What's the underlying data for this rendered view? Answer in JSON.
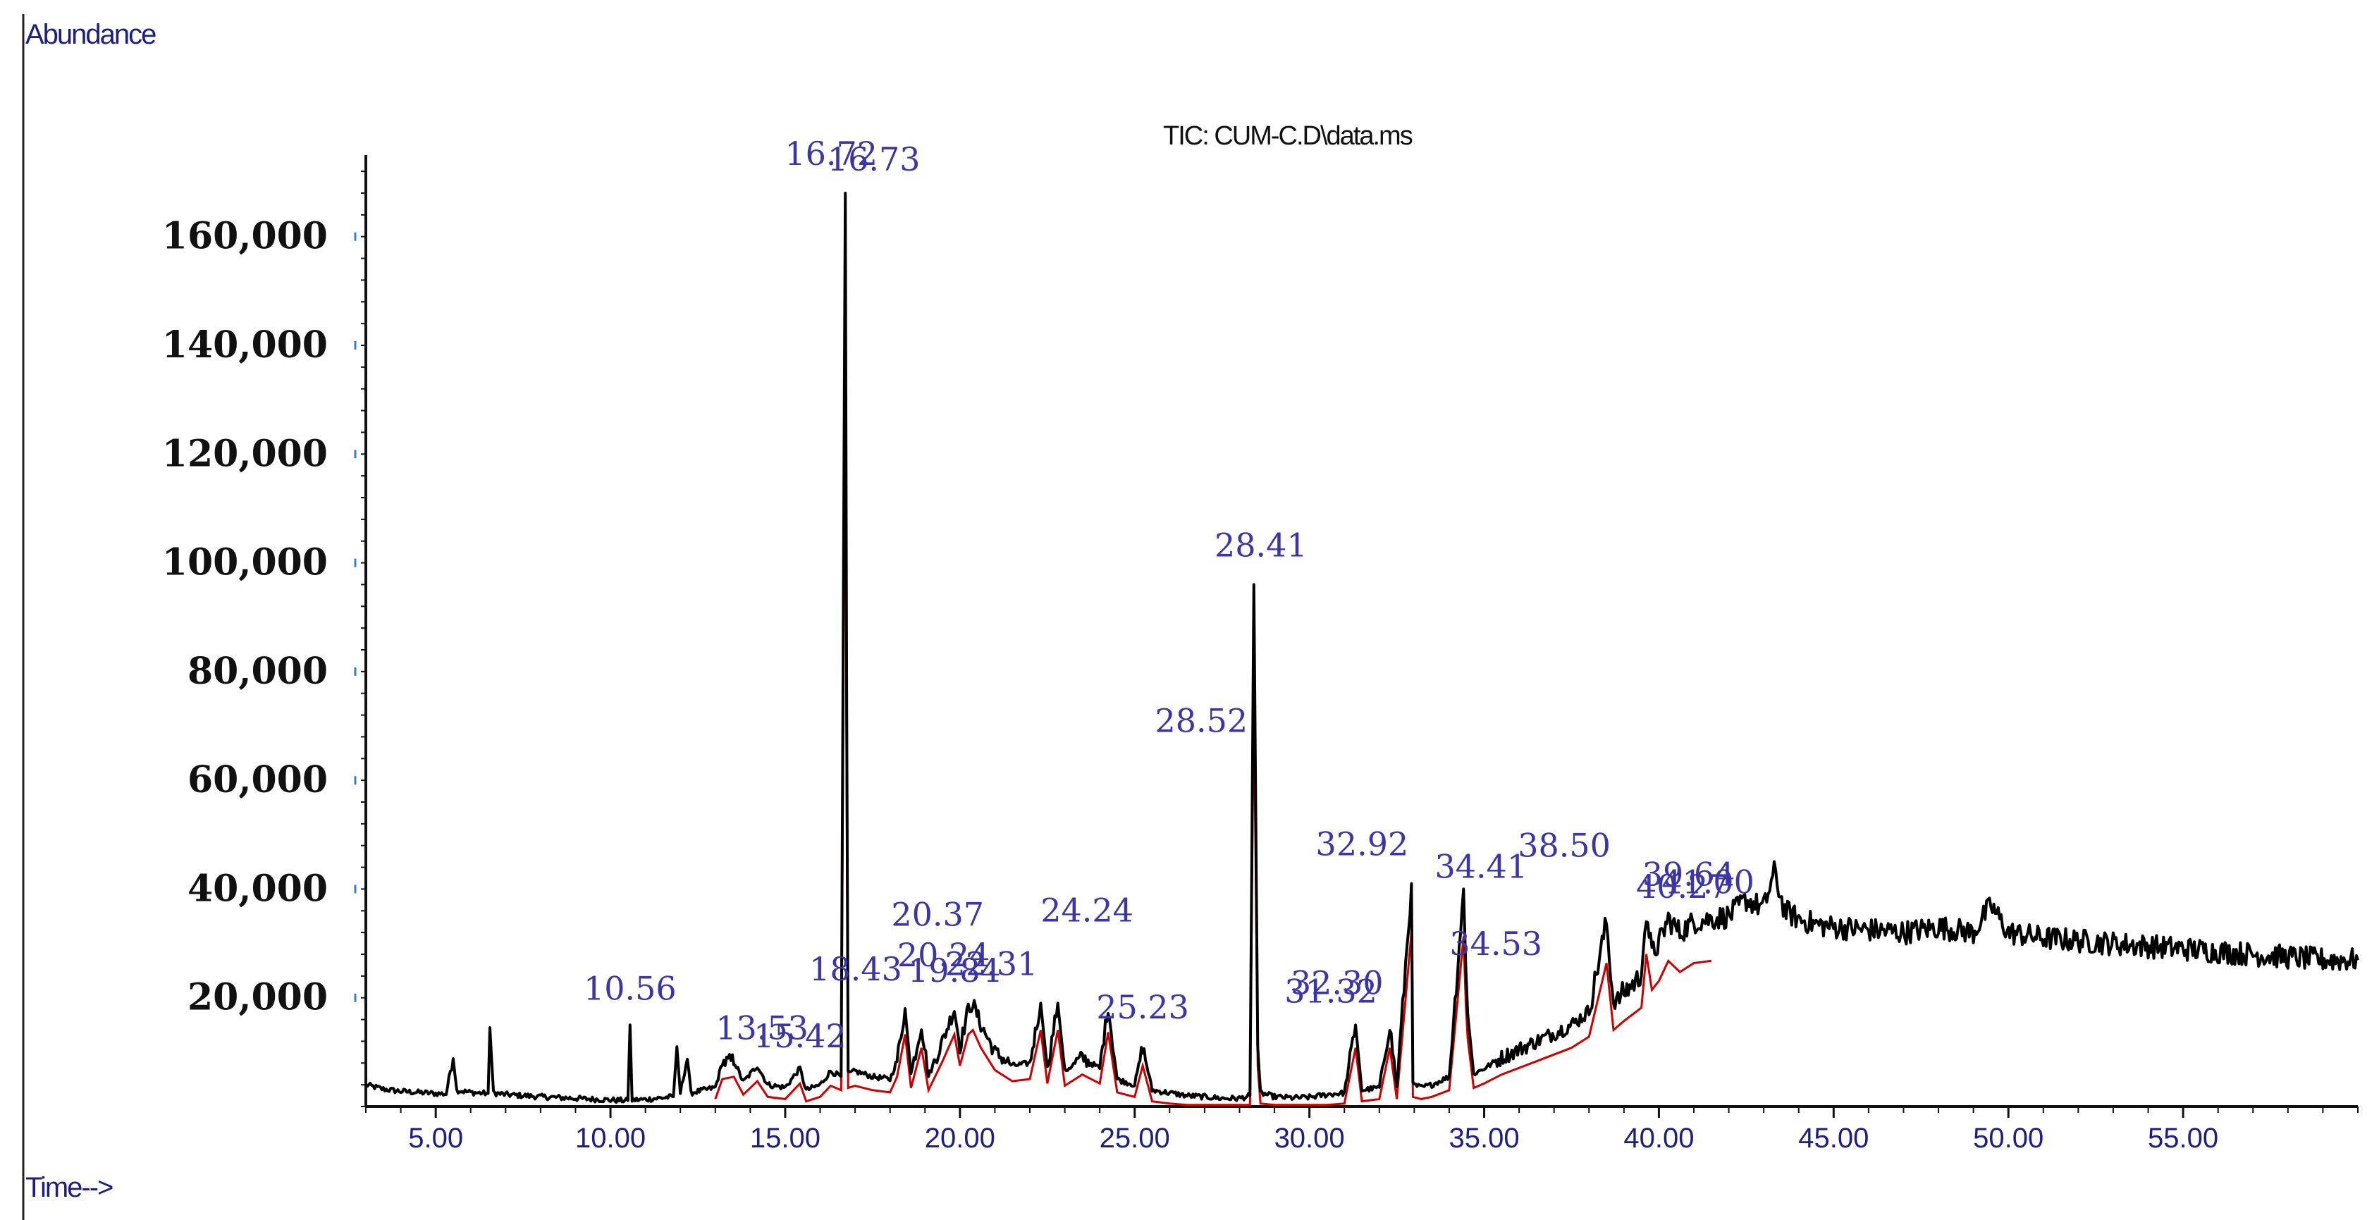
{
  "chart_data": {
    "type": "line",
    "title": "TIC: CUM-C.D\\data.ms",
    "ylabel": "Abundance",
    "xlabel": "Time-->",
    "xlim": [
      3.0,
      60.0
    ],
    "ylim": [
      0,
      175000
    ],
    "x_ticks": [
      "5.00",
      "10.00",
      "15.00",
      "20.00",
      "25.00",
      "30.00",
      "35.00",
      "40.00",
      "45.00",
      "50.00",
      "55.00"
    ],
    "y_ticks": [
      "20,000",
      "40,000",
      "60,000",
      "80,000",
      "100,000",
      "120,000",
      "140,000",
      "160,000"
    ],
    "grid": false,
    "colors": {
      "trace": "#000000",
      "baseline": "#cc0000",
      "labels": "#3b35a6",
      "axes": "#111111"
    },
    "peak_labels": [
      "10.56",
      "13.53",
      "15.42",
      "16.72",
      "16.73",
      "18.43",
      "19.84",
      "20.24",
      "20.37",
      "22.31",
      "24.24",
      "25.23",
      "28.41",
      "28.52",
      "31.32",
      "32.30",
      "32.92",
      "34.41",
      "34.53",
      "38.50",
      "39.64",
      "40.27",
      "41.00"
    ],
    "series": [
      {
        "points": [
          [
            3.0,
            4000
          ],
          [
            3.5,
            3200
          ],
          [
            4.0,
            2800
          ],
          [
            4.5,
            2600
          ],
          [
            5.0,
            2400
          ],
          [
            5.3,
            2300
          ],
          [
            5.5,
            9500
          ],
          [
            5.6,
            3000
          ],
          [
            6.0,
            2600
          ],
          [
            6.5,
            2400
          ],
          [
            6.55,
            14500
          ],
          [
            6.65,
            2500
          ],
          [
            7.0,
            2200
          ],
          [
            8.0,
            1800
          ],
          [
            9.0,
            1500
          ],
          [
            10.0,
            1200
          ],
          [
            10.5,
            1100
          ],
          [
            10.56,
            15000
          ],
          [
            10.62,
            1200
          ],
          [
            11.0,
            1300
          ],
          [
            11.8,
            1800
          ],
          [
            11.9,
            11000
          ],
          [
            12.0,
            2500
          ],
          [
            12.2,
            9000
          ],
          [
            12.3,
            2500
          ],
          [
            13.0,
            3500
          ],
          [
            13.2,
            8000
          ],
          [
            13.53,
            8500
          ],
          [
            13.8,
            4500
          ],
          [
            14.2,
            7500
          ],
          [
            14.5,
            4000
          ],
          [
            15.0,
            3500
          ],
          [
            15.42,
            7000
          ],
          [
            15.6,
            3000
          ],
          [
            16.0,
            4000
          ],
          [
            16.3,
            6500
          ],
          [
            16.6,
            5500
          ],
          [
            16.72,
            168000
          ],
          [
            16.76,
            72000
          ],
          [
            16.8,
            6000
          ],
          [
            17.0,
            6500
          ],
          [
            17.5,
            5500
          ],
          [
            18.0,
            5000
          ],
          [
            18.2,
            8500
          ],
          [
            18.43,
            18000
          ],
          [
            18.6,
            6000
          ],
          [
            18.9,
            15000
          ],
          [
            19.1,
            5500
          ],
          [
            19.5,
            12000
          ],
          [
            19.84,
            18000
          ],
          [
            20.0,
            11000
          ],
          [
            20.24,
            18000
          ],
          [
            20.37,
            19000
          ],
          [
            20.6,
            15000
          ],
          [
            21.0,
            10000
          ],
          [
            21.5,
            7500
          ],
          [
            22.0,
            8000
          ],
          [
            22.31,
            19000
          ],
          [
            22.5,
            7000
          ],
          [
            22.8,
            19000
          ],
          [
            23.0,
            6500
          ],
          [
            23.5,
            9000
          ],
          [
            24.0,
            7000
          ],
          [
            24.24,
            18500
          ],
          [
            24.5,
            5000
          ],
          [
            25.0,
            4000
          ],
          [
            25.23,
            11000
          ],
          [
            25.5,
            3000
          ],
          [
            26.0,
            2500
          ],
          [
            26.5,
            2000
          ],
          [
            27.0,
            1800
          ],
          [
            27.5,
            1500
          ],
          [
            28.0,
            1500
          ],
          [
            28.3,
            2000
          ],
          [
            28.41,
            96000
          ],
          [
            28.45,
            65000
          ],
          [
            28.52,
            11000
          ],
          [
            28.6,
            2500
          ],
          [
            29.0,
            1800
          ],
          [
            29.5,
            1600
          ],
          [
            30.0,
            1700
          ],
          [
            30.5,
            2200
          ],
          [
            31.0,
            2500
          ],
          [
            31.32,
            15000
          ],
          [
            31.5,
            3000
          ],
          [
            32.0,
            3500
          ],
          [
            32.3,
            15000
          ],
          [
            32.5,
            3500
          ],
          [
            32.92,
            41000
          ],
          [
            32.96,
            4000
          ],
          [
            33.2,
            3500
          ],
          [
            33.5,
            4000
          ],
          [
            34.0,
            5500
          ],
          [
            34.41,
            40000
          ],
          [
            34.48,
            24000
          ],
          [
            34.53,
            17000
          ],
          [
            34.7,
            6000
          ],
          [
            35.0,
            7000
          ],
          [
            35.5,
            9000
          ],
          [
            36.0,
            10500
          ],
          [
            36.5,
            12000
          ],
          [
            37.0,
            13500
          ],
          [
            37.5,
            15000
          ],
          [
            38.0,
            17500
          ],
          [
            38.5,
            34000
          ],
          [
            38.7,
            19000
          ],
          [
            39.0,
            21000
          ],
          [
            39.5,
            24000
          ],
          [
            39.64,
            36000
          ],
          [
            39.8,
            28000
          ],
          [
            40.0,
            30000
          ],
          [
            40.27,
            34500
          ],
          [
            40.6,
            32000
          ],
          [
            41.0,
            34000
          ],
          [
            41.5,
            34500
          ],
          [
            42.0,
            35000
          ],
          [
            42.5,
            38000
          ],
          [
            43.0,
            36500
          ],
          [
            43.3,
            43000
          ],
          [
            43.6,
            36000
          ],
          [
            44.0,
            34500
          ],
          [
            44.5,
            33500
          ],
          [
            45.0,
            33000
          ],
          [
            46.0,
            32500
          ],
          [
            47.0,
            32000
          ],
          [
            48.0,
            33000
          ],
          [
            49.0,
            32000
          ],
          [
            49.5,
            37000
          ],
          [
            50.0,
            32000
          ],
          [
            51.0,
            31000
          ],
          [
            52.0,
            30500
          ],
          [
            53.0,
            30000
          ],
          [
            54.0,
            29500
          ],
          [
            55.0,
            29000
          ],
          [
            56.0,
            28500
          ],
          [
            57.0,
            28000
          ],
          [
            58.0,
            27500
          ],
          [
            59.0,
            27000
          ],
          [
            60.0,
            27000
          ]
        ]
      }
    ]
  }
}
